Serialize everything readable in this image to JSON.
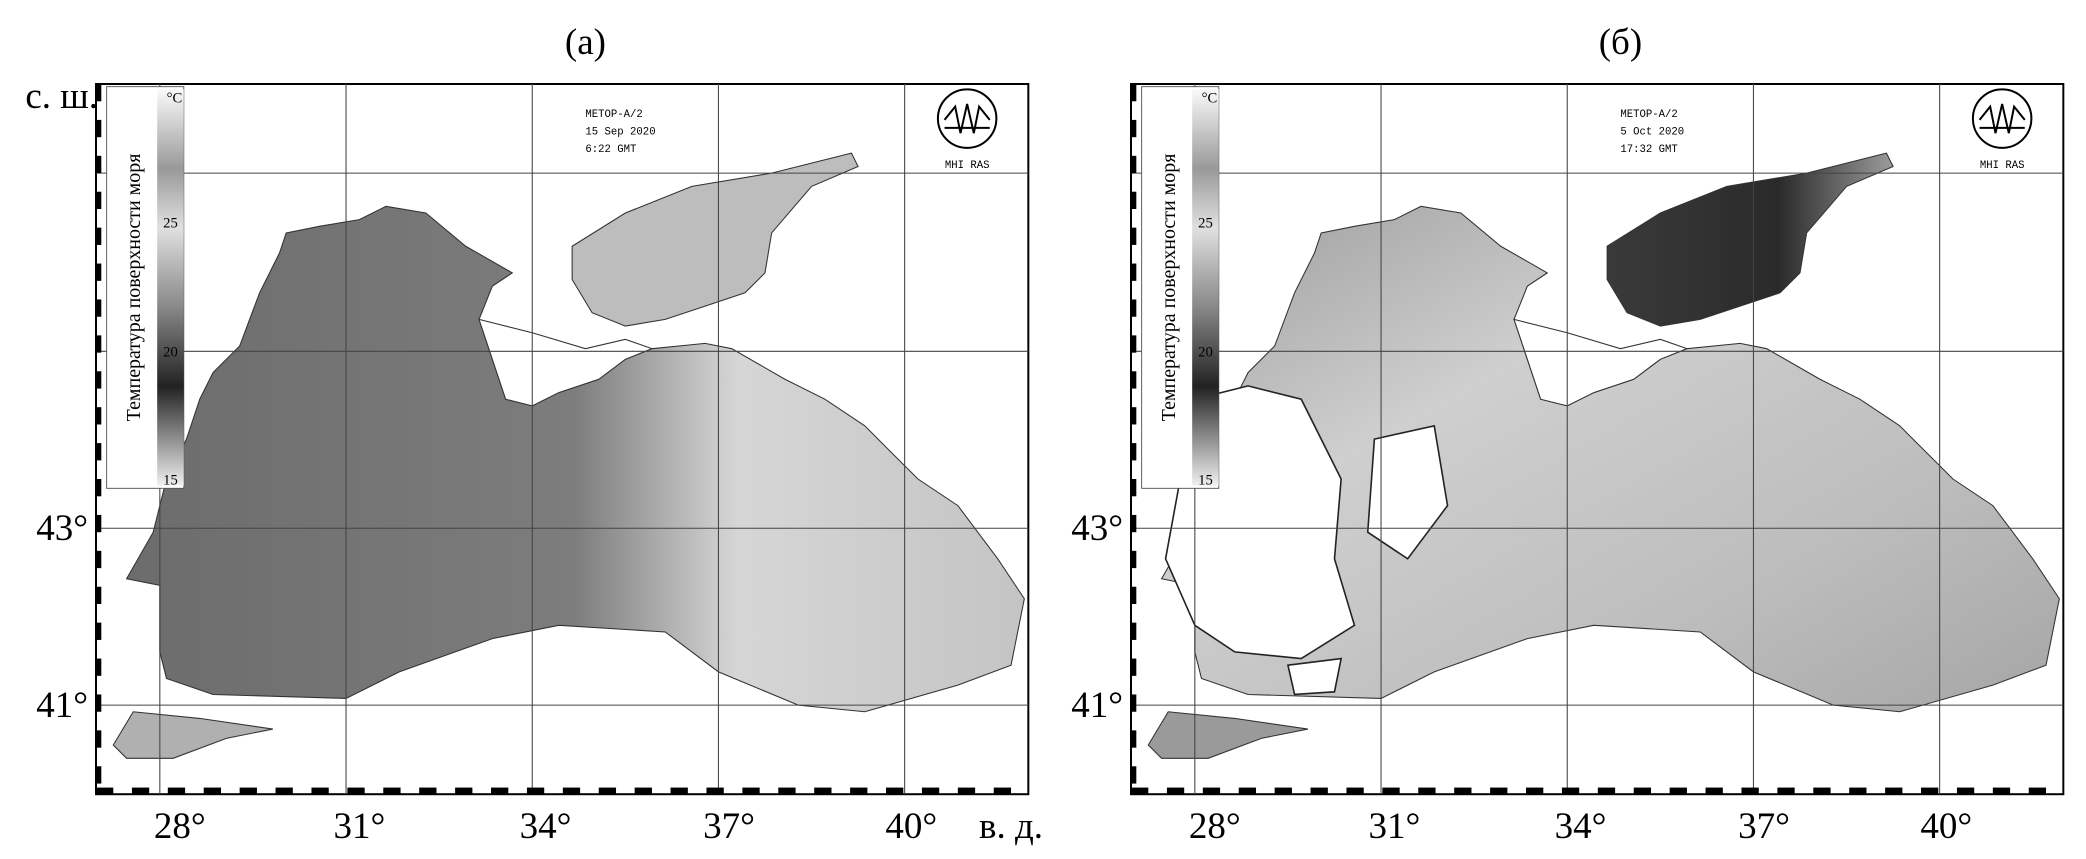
{
  "panels": [
    {
      "label": "(а)",
      "colorbar": {
        "title": "Температура поверхности моря",
        "unit": "°C",
        "ticks": [
          "25",
          "20",
          "15"
        ]
      },
      "satellite": "METOP-A/2",
      "date": "15 Sep 2020",
      "time": "6:22 GMT",
      "logo": "MHI RAS",
      "lat_labels": [
        "43°",
        "41°"
      ],
      "lon_labels": [
        "28°",
        "31°",
        "34°",
        "37°",
        "40°"
      ]
    },
    {
      "label": "(б)",
      "colorbar": {
        "title": "Температура поверхности моря",
        "unit": "°C",
        "ticks": [
          "25",
          "20",
          "15"
        ]
      },
      "satellite": "METOP-A/2",
      "date": "5 Oct 2020",
      "time": "17:32 GMT",
      "logo": "MHI RAS",
      "lat_labels": [
        "43°",
        "41°"
      ],
      "lon_labels": [
        "28°",
        "31°",
        "34°",
        "37°",
        "40°"
      ]
    }
  ],
  "lat_axis_title": "с. ш.",
  "lon_axis_title": "в. д."
}
